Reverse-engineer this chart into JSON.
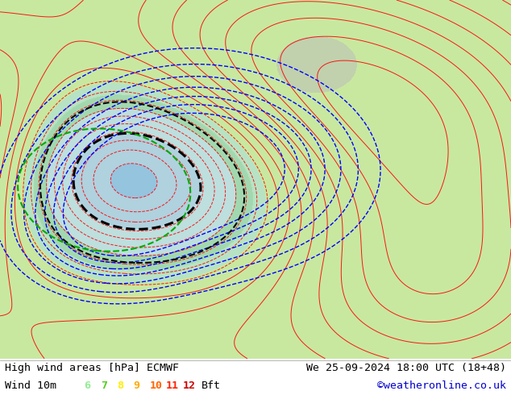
{
  "title_left": "High wind areas [hPa] ECMWF",
  "title_right": "We 25-09-2024 18:00 UTC (18+48)",
  "legend_label": "Wind 10m",
  "legend_values": [
    "6",
    "7",
    "8",
    "9",
    "10",
    "11",
    "12"
  ],
  "legend_colors": [
    "#90ee90",
    "#55cc22",
    "#ffee00",
    "#ffaa00",
    "#ff6600",
    "#ff2200",
    "#cc0000"
  ],
  "legend_suffix": "Bft",
  "copyright": "©weatheronline.co.uk",
  "bg_color": "#ffffff",
  "text_color": "#000000",
  "title_fontsize": 9.5,
  "legend_fontsize": 9.5,
  "copyright_color": "#0000cc",
  "map_land_color": "#c8e8a0",
  "map_sea_color": "#ddeeff",
  "map_low_color": "#aaddff",
  "contour_red": "#ff0000",
  "contour_blue": "#0000ff",
  "contour_black": "#000000",
  "contour_green": "#00aa00",
  "bar_line_color": "#999999"
}
